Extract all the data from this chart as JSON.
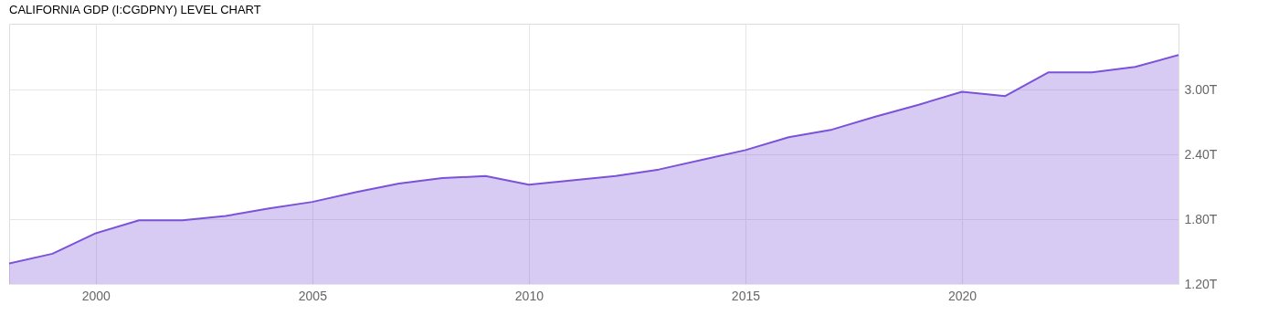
{
  "chart_data": {
    "type": "area",
    "title": "CALIFORNIA GDP (I:CGDPNY) LEVEL CHART",
    "x": [
      1998,
      1999,
      2000,
      2001,
      2002,
      2003,
      2004,
      2005,
      2006,
      2007,
      2008,
      2009,
      2010,
      2011,
      2012,
      2013,
      2014,
      2015,
      2016,
      2017,
      2018,
      2019,
      2020,
      2021,
      2022,
      2023,
      2024,
      2025
    ],
    "series": [
      {
        "color": "#7b52d8",
        "values": [
          1.39,
          1.48,
          1.67,
          1.79,
          1.79,
          1.83,
          1.9,
          1.96,
          2.05,
          2.13,
          2.18,
          2.2,
          2.12,
          2.16,
          2.2,
          2.26,
          2.35,
          2.44,
          2.56,
          2.63,
          2.75,
          2.86,
          2.98,
          2.94,
          3.16,
          3.16,
          3.21,
          3.32
        ]
      }
    ],
    "xlim": [
      1998,
      2025
    ],
    "xticks": [
      2000,
      2005,
      2010,
      2015,
      2020
    ],
    "ylim": [
      1.2,
      3.61
    ],
    "yticks": [
      {
        "value": 1.2,
        "label": "1.20T"
      },
      {
        "value": 1.8,
        "label": "1.80T"
      },
      {
        "value": 2.4,
        "label": "2.40T"
      },
      {
        "value": 3.0,
        "label": "3.00T"
      }
    ],
    "grid": true
  }
}
